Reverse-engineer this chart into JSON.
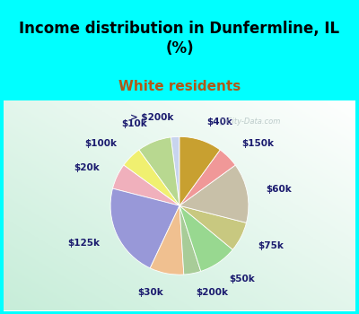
{
  "title": "Income distribution in Dunfermline, IL\n(%)",
  "subtitle": "White residents",
  "background_color": "#00FFFF",
  "chart_bg_color": "#d8ede0",
  "labels": [
    "> $200k",
    "$10k",
    "$100k",
    "$20k",
    "$125k",
    "$30k",
    "$200k",
    "$50k",
    "$75k",
    "$60k",
    "$150k",
    "$40k"
  ],
  "sizes": [
    2,
    8,
    5,
    6,
    22,
    8,
    4,
    9,
    7,
    14,
    5,
    10
  ],
  "colors": [
    "#c8d4ee",
    "#b8d890",
    "#f0f070",
    "#f0b0bc",
    "#9898d8",
    "#f0c090",
    "#a8cc98",
    "#98d890",
    "#c8c880",
    "#c8c0a8",
    "#f09898",
    "#c8a030"
  ],
  "startangle": 90,
  "label_fontsize": 7.5,
  "title_fontsize": 12,
  "subtitle_fontsize": 11,
  "subtitle_color": "#b05818",
  "title_color": "#000000",
  "label_color": "#1a1a6e"
}
